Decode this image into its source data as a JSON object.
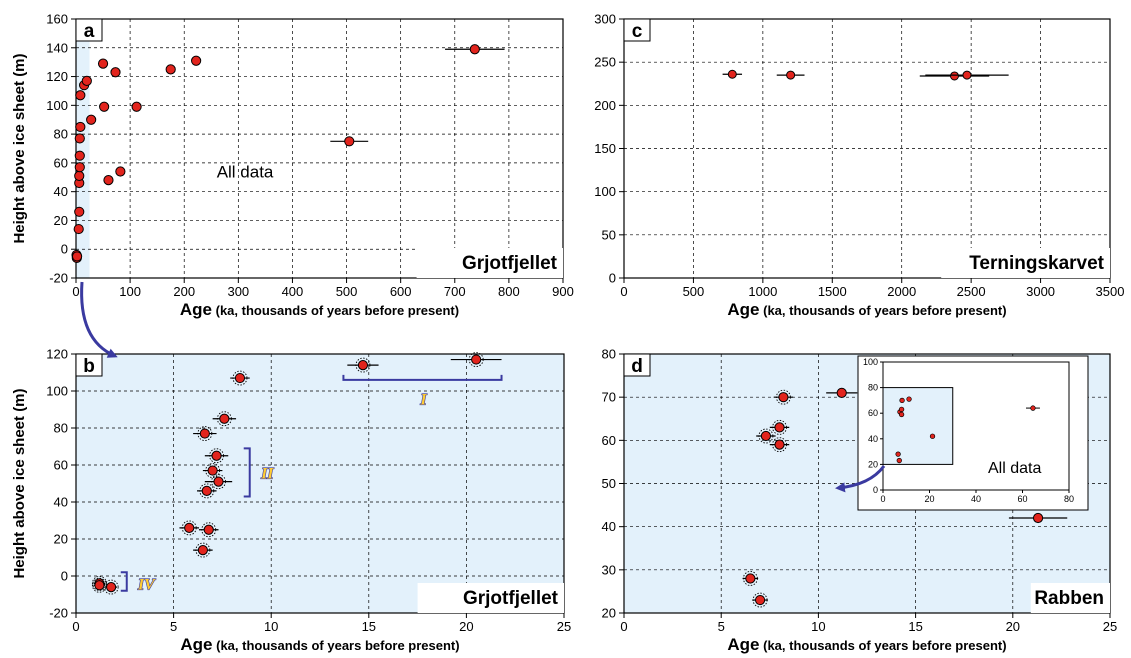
{
  "colors": {
    "point_fill": "#e2241d",
    "point_stroke": "#000000",
    "panel_shade": "#e3f1fb",
    "bracket": "#3a3aa0",
    "arrow": "#3a3aa0",
    "roman_fill": "#ffcc33"
  },
  "chart_data": [
    {
      "id": "a",
      "type": "scatter",
      "panel_label": "a",
      "site": "Grjotfjellet",
      "note": "All data",
      "ylabel": "Height above ice sheet (m)",
      "xlabel_bold": "Age",
      "xlabel_rest": " (ka, thousands of years before present)",
      "xlim": [
        0,
        900
      ],
      "ylim": [
        -20,
        160
      ],
      "xticks": [
        0,
        100,
        200,
        300,
        400,
        500,
        600,
        700,
        800,
        900
      ],
      "yticks": [
        -20,
        0,
        20,
        40,
        60,
        80,
        100,
        120,
        140,
        160
      ],
      "grid": true,
      "shade_x": [
        0,
        25
      ],
      "points": [
        {
          "x": 1,
          "y": -4
        },
        {
          "x": 1.5,
          "y": -6
        },
        {
          "x": 2,
          "y": -5
        },
        {
          "x": 5,
          "y": 14
        },
        {
          "x": 6,
          "y": 26
        },
        {
          "x": 6,
          "y": 46
        },
        {
          "x": 6,
          "y": 51
        },
        {
          "x": 7,
          "y": 57
        },
        {
          "x": 7,
          "y": 65
        },
        {
          "x": 7,
          "y": 77
        },
        {
          "x": 8,
          "y": 85
        },
        {
          "x": 8,
          "y": 107
        },
        {
          "x": 15,
          "y": 114
        },
        {
          "x": 20,
          "y": 117
        },
        {
          "x": 28,
          "y": 90
        },
        {
          "x": 50,
          "y": 129
        },
        {
          "x": 52,
          "y": 99
        },
        {
          "x": 60,
          "y": 48
        },
        {
          "x": 73,
          "y": 123
        },
        {
          "x": 82,
          "y": 54
        },
        {
          "x": 112,
          "y": 99
        },
        {
          "x": 175,
          "y": 125
        },
        {
          "x": 222,
          "y": 131
        },
        {
          "x": 505,
          "y": 75,
          "xerr": 35
        },
        {
          "x": 737,
          "y": 139,
          "xerr": 55
        }
      ]
    },
    {
      "id": "b",
      "type": "scatter",
      "panel_label": "b",
      "site": "Grjotfjellet",
      "ylabel": "Height above ice sheet (m)",
      "xlabel_bold": "Age",
      "xlabel_rest": " (ka, thousands of years before present)",
      "xlim": [
        0,
        25
      ],
      "ylim": [
        -20,
        120
      ],
      "xticks": [
        0,
        5,
        10,
        15,
        20,
        25
      ],
      "yticks": [
        -20,
        0,
        20,
        40,
        60,
        80,
        100,
        120
      ],
      "grid": true,
      "shaded": true,
      "points": [
        {
          "x": 1.2,
          "y": -4,
          "xerr": 0.3
        },
        {
          "x": 1.2,
          "y": -5,
          "xerr": 0.3
        },
        {
          "x": 1.8,
          "y": -6,
          "xerr": 0.3
        },
        {
          "x": 5.8,
          "y": 26,
          "xerr": 0.5
        },
        {
          "x": 6.5,
          "y": 14,
          "xerr": 0.5
        },
        {
          "x": 6.8,
          "y": 25,
          "xerr": 0.5
        },
        {
          "x": 6.7,
          "y": 46,
          "xerr": 0.5
        },
        {
          "x": 7.0,
          "y": 57,
          "xerr": 0.5
        },
        {
          "x": 7.3,
          "y": 51,
          "xerr": 0.7
        },
        {
          "x": 7.2,
          "y": 65,
          "xerr": 0.6
        },
        {
          "x": 6.6,
          "y": 77,
          "xerr": 0.6
        },
        {
          "x": 7.6,
          "y": 85,
          "xerr": 0.6
        },
        {
          "x": 8.4,
          "y": 107,
          "xerr": 0.5
        },
        {
          "x": 14.7,
          "y": 114,
          "xerr": 0.8
        },
        {
          "x": 20.5,
          "y": 117,
          "xerr": 1.3
        }
      ],
      "groups": [
        {
          "label": "I",
          "x0": 13.7,
          "x1": 21.8,
          "y": 106,
          "label_x": 17.8,
          "label_y": 96
        },
        {
          "label": "II",
          "x_line": 8.9,
          "y0": 43,
          "y1": 69,
          "label_x": 9.8,
          "label_y": 56
        },
        {
          "label": "IV",
          "x_line": 2.6,
          "y0": -8,
          "y1": 2,
          "label_x": 3.6,
          "label_y": -4
        }
      ]
    },
    {
      "id": "c",
      "type": "scatter",
      "panel_label": "c",
      "site": "Terningskarvet",
      "xlabel_bold": "Age",
      "xlabel_rest": " (ka, thousands of years before present)",
      "xlim": [
        0,
        3500
      ],
      "ylim": [
        0,
        300
      ],
      "xticks": [
        0,
        500,
        1000,
        1500,
        2000,
        2500,
        3000,
        3500
      ],
      "yticks": [
        0,
        50,
        100,
        150,
        200,
        250,
        300
      ],
      "grid": true,
      "points": [
        {
          "x": 780,
          "y": 236,
          "xerr": 70
        },
        {
          "x": 1200,
          "y": 235,
          "xerr": 100
        },
        {
          "x": 2380,
          "y": 234,
          "xerr": 250
        },
        {
          "x": 2470,
          "y": 235,
          "xerr": 300
        }
      ]
    },
    {
      "id": "d",
      "type": "scatter",
      "panel_label": "d",
      "site": "Rabben",
      "xlabel_bold": "Age",
      "xlabel_rest": " (ka, thousands of years before present)",
      "xlim": [
        0,
        25
      ],
      "ylim": [
        20,
        80
      ],
      "xticks": [
        0,
        5,
        10,
        15,
        20,
        25
      ],
      "yticks": [
        20,
        30,
        40,
        50,
        60,
        70,
        80
      ],
      "grid": true,
      "shaded": true,
      "points": [
        {
          "x": 6.5,
          "y": 28,
          "xerr": 0.4
        },
        {
          "x": 7.0,
          "y": 23,
          "xerr": 0.4
        },
        {
          "x": 7.3,
          "y": 61,
          "xerr": 0.5
        },
        {
          "x": 8.0,
          "y": 63,
          "xerr": 0.5
        },
        {
          "x": 8.0,
          "y": 59,
          "xerr": 0.5
        },
        {
          "x": 8.2,
          "y": 70,
          "xerr": 0.5
        },
        {
          "x": 11.2,
          "y": 71,
          "xerr": 0.8,
          "plain": true
        },
        {
          "x": 21.3,
          "y": 42,
          "xerr": 1.5,
          "plain": true
        }
      ],
      "inset": {
        "note": "All data",
        "xlim": [
          0,
          80
        ],
        "ylim": [
          0,
          100
        ],
        "xticks": [
          0,
          20,
          40,
          60,
          80
        ],
        "yticks": [
          0,
          20,
          40,
          60,
          80,
          100
        ],
        "shade_box": [
          0,
          30,
          20,
          80
        ],
        "points": [
          {
            "x": 6.5,
            "y": 28
          },
          {
            "x": 7.0,
            "y": 23
          },
          {
            "x": 7.3,
            "y": 61
          },
          {
            "x": 8.0,
            "y": 63
          },
          {
            "x": 8.0,
            "y": 59
          },
          {
            "x": 8.2,
            "y": 70
          },
          {
            "x": 11.2,
            "y": 71
          },
          {
            "x": 21.3,
            "y": 42
          },
          {
            "x": 64.5,
            "y": 64,
            "xerr": 3
          }
        ]
      }
    }
  ]
}
